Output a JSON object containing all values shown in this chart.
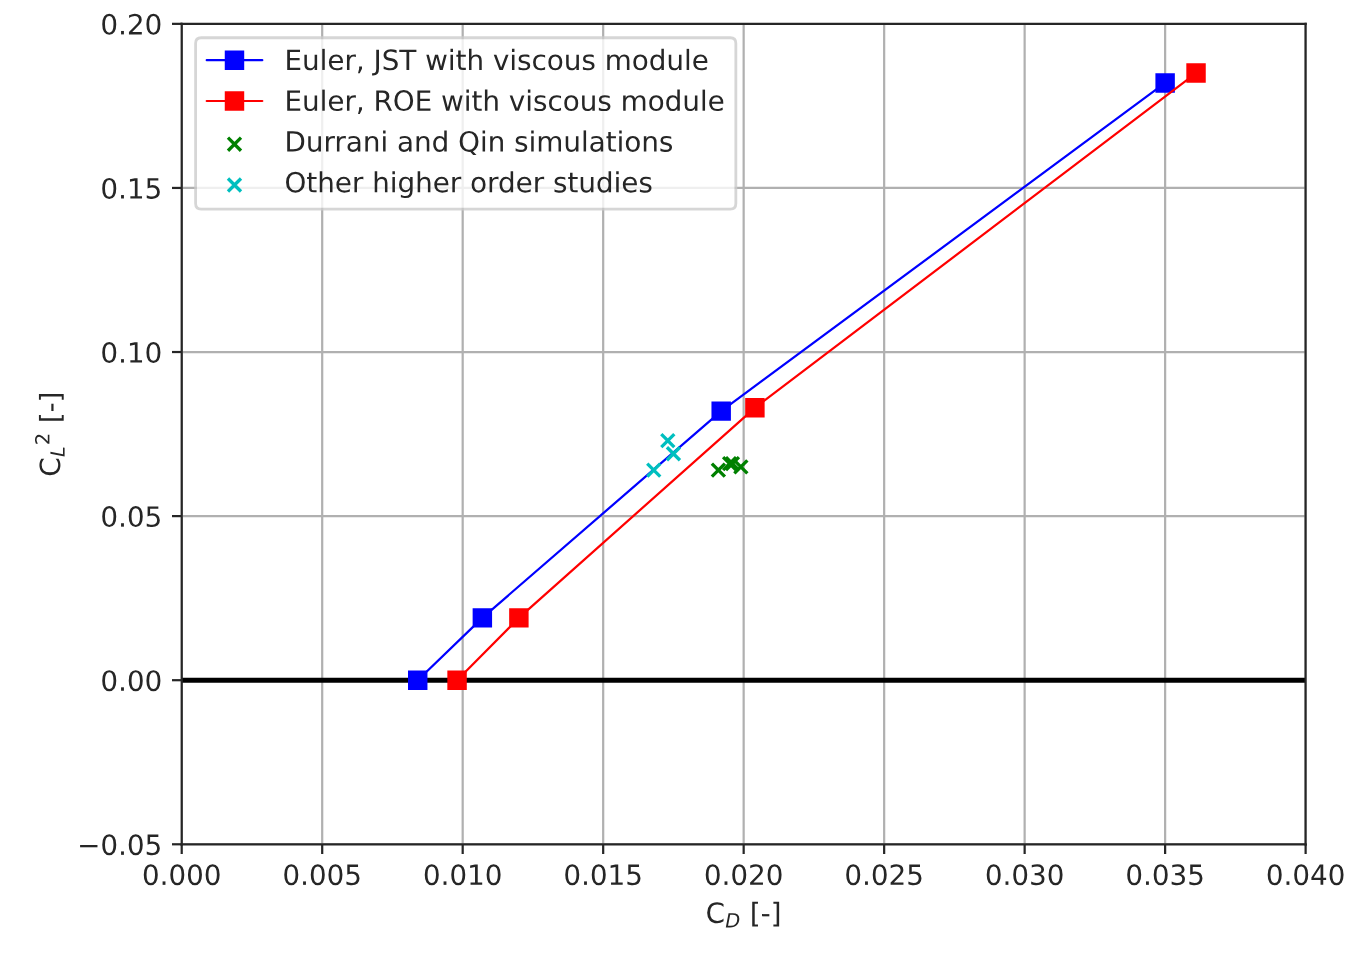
{
  "chart_data": {
    "type": "line",
    "xlabel": "C$_{D}$ [-]",
    "ylabel": "C$_{L}$$^{2}$ [-]",
    "xlim": [
      0,
      0.04
    ],
    "xticks": [
      {
        "value": 0,
        "label": "0.000"
      },
      {
        "value": 0.005,
        "label": "0.005"
      },
      {
        "value": 0.01,
        "label": "0.010"
      },
      {
        "value": 0.015,
        "label": "0.015"
      },
      {
        "value": 0.02,
        "label": "0.020"
      },
      {
        "value": 0.025,
        "label": "0.025"
      },
      {
        "value": 0.03,
        "label": "0.030"
      },
      {
        "value": 0.035,
        "label": "0.035"
      },
      {
        "value": 0.04,
        "label": "0.040"
      }
    ],
    "ylim": [
      -0.05,
      0.2
    ],
    "yticks": [
      {
        "value": -0.05,
        "label": "−0.05"
      },
      {
        "value": 0,
        "label": "0.00"
      },
      {
        "value": 0.05,
        "label": "0.05"
      },
      {
        "value": 0.1,
        "label": "0.10"
      },
      {
        "value": 0.15,
        "label": "0.15"
      },
      {
        "value": 0.2,
        "label": "0.20"
      }
    ],
    "grid": true,
    "legend": "top left",
    "line_style": "solid",
    "ref_lines": [
      {
        "axis": "y",
        "value": 0,
        "color": "#000000"
      }
    ],
    "series": [
      {
        "name": "Euler, JST with viscous module",
        "marker": "square",
        "color": "#0000ff",
        "x": [
          0.0084,
          0.0107,
          0.0192,
          0.035
        ],
        "values": [
          0,
          0.019,
          0.082,
          0.182
        ]
      },
      {
        "name": "Euler, ROE with viscous module",
        "marker": "square",
        "color": "#ff0000",
        "x": [
          0.0098,
          0.012,
          0.0204,
          0.0361
        ],
        "values": [
          0,
          0.019,
          0.083,
          0.185
        ]
      },
      {
        "name": "Durrani and Qin simulations",
        "type": "scatter",
        "marker": "cross",
        "color": "#008000",
        "x": [
          0.0191,
          0.0195,
          0.0196,
          0.0199
        ],
        "values": [
          0.064,
          0.066,
          0.066,
          0.065
        ]
      },
      {
        "name": "Other higher order studies",
        "type": "scatter",
        "marker": "cross",
        "color": "#00bfbf",
        "x": [
          0.0168,
          0.0173,
          0.0175
        ],
        "values": [
          0.064,
          0.073,
          0.069
        ]
      }
    ]
  }
}
